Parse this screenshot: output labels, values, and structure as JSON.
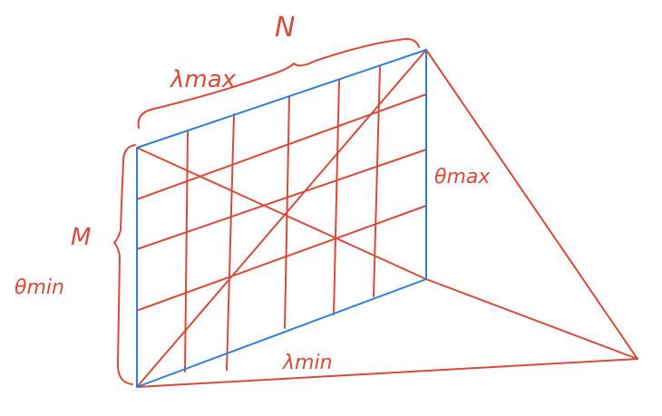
{
  "colors": {
    "ink_red": "#d84a3a",
    "ink_blue": "#2f7fd6",
    "background": "#ffffff"
  },
  "labels": {
    "n": "N",
    "m": "M",
    "lambda_max": "λmax",
    "lambda_min": "λmin",
    "theta_max": "θmax",
    "theta_min": "θmin"
  }
}
